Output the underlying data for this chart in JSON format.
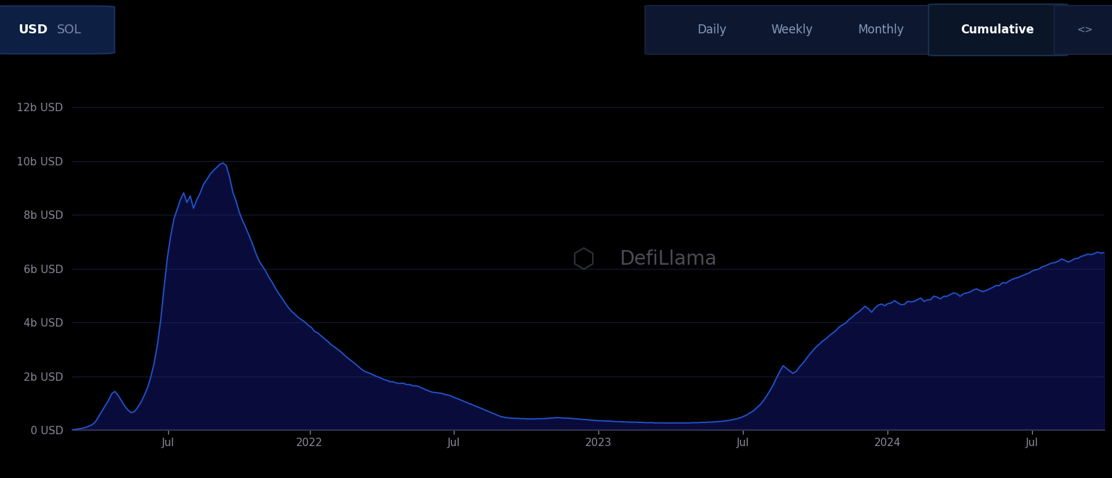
{
  "background_color": "#000000",
  "chart_bg": "#000000",
  "line_color": "#2255cc",
  "fill_color": "#1a3a8a",
  "ylabel_items": [
    "0 USD",
    "2b USD",
    "4b USD",
    "6b USD",
    "8b USD",
    "10b USD",
    "12b USD"
  ],
  "yticks": [
    0,
    2,
    4,
    6,
    8,
    10,
    12
  ],
  "ylim": [
    0,
    13.5
  ],
  "grid_color": "#1a1f3a",
  "tick_color": "#888899",
  "header_bg": "#060d1f",
  "ui_text_color": "#8899bb",
  "ui_active_color": "#ffffff",
  "watermark_text": "DefiLlama",
  "watermark_color": "#444455",
  "x_tick_labels": [
    "Jul",
    "2022",
    "Jul",
    "2023",
    "Jul",
    "2024",
    "Jul"
  ],
  "tvl_data": [
    0.02,
    0.03,
    0.05,
    0.07,
    0.1,
    0.15,
    0.2,
    0.3,
    0.5,
    0.7,
    0.9,
    1.1,
    1.35,
    1.45,
    1.3,
    1.1,
    0.9,
    0.75,
    0.65,
    0.7,
    0.85,
    1.05,
    1.3,
    1.6,
    2.0,
    2.5,
    3.2,
    4.1,
    5.3,
    6.4,
    7.2,
    7.8,
    8.2,
    8.6,
    8.8,
    8.5,
    8.7,
    8.3,
    8.6,
    8.8,
    9.1,
    9.3,
    9.5,
    9.65,
    9.8,
    9.9,
    9.95,
    9.8,
    9.4,
    8.9,
    8.5,
    8.1,
    7.8,
    7.5,
    7.2,
    6.9,
    6.6,
    6.3,
    6.1,
    5.9,
    5.7,
    5.5,
    5.3,
    5.1,
    4.9,
    4.7,
    4.55,
    4.4,
    4.3,
    4.2,
    4.1,
    4.0,
    3.9,
    3.8,
    3.7,
    3.6,
    3.5,
    3.4,
    3.3,
    3.2,
    3.1,
    3.0,
    2.9,
    2.8,
    2.7,
    2.6,
    2.5,
    2.4,
    2.3,
    2.2,
    2.15,
    2.1,
    2.05,
    2.0,
    1.95,
    1.9,
    1.85,
    1.8,
    1.8,
    1.75,
    1.75,
    1.75,
    1.7,
    1.7,
    1.65,
    1.65,
    1.6,
    1.55,
    1.5,
    1.45,
    1.42,
    1.4,
    1.38,
    1.35,
    1.32,
    1.3,
    1.25,
    1.2,
    1.15,
    1.1,
    1.05,
    1.0,
    0.95,
    0.9,
    0.85,
    0.8,
    0.75,
    0.7,
    0.65,
    0.6,
    0.55,
    0.5,
    0.48,
    0.46,
    0.45,
    0.44,
    0.44,
    0.43,
    0.43,
    0.42,
    0.42,
    0.42,
    0.43,
    0.43,
    0.43,
    0.44,
    0.45,
    0.46,
    0.47,
    0.46,
    0.45,
    0.45,
    0.44,
    0.43,
    0.42,
    0.41,
    0.4,
    0.39,
    0.38,
    0.37,
    0.36,
    0.35,
    0.35,
    0.34,
    0.34,
    0.33,
    0.32,
    0.32,
    0.31,
    0.31,
    0.3,
    0.3,
    0.3,
    0.29,
    0.29,
    0.28,
    0.28,
    0.28,
    0.27,
    0.27,
    0.27,
    0.27,
    0.27,
    0.27,
    0.27,
    0.27,
    0.27,
    0.27,
    0.27,
    0.28,
    0.28,
    0.28,
    0.29,
    0.29,
    0.3,
    0.3,
    0.31,
    0.32,
    0.33,
    0.34,
    0.36,
    0.38,
    0.4,
    0.43,
    0.47,
    0.52,
    0.58,
    0.65,
    0.73,
    0.83,
    0.95,
    1.1,
    1.28,
    1.48,
    1.7,
    1.95,
    2.2,
    2.4,
    2.3,
    2.2,
    2.1,
    2.2,
    2.35,
    2.5,
    2.65,
    2.8,
    2.95,
    3.1,
    3.2,
    3.3,
    3.4,
    3.5,
    3.6,
    3.7,
    3.8,
    3.9,
    4.0,
    4.1,
    4.2,
    4.3,
    4.4,
    4.5,
    4.6,
    4.5,
    4.4,
    4.55,
    4.65,
    4.7,
    4.6,
    4.7,
    4.75,
    4.8,
    4.7,
    4.65,
    4.7,
    4.8,
    4.75,
    4.8,
    4.85,
    4.9,
    4.8,
    4.85,
    4.9,
    5.0,
    4.95,
    4.9,
    4.95,
    5.0,
    5.05,
    5.1,
    5.05,
    5.0,
    5.05,
    5.1,
    5.15,
    5.2,
    5.25,
    5.2,
    5.15,
    5.2,
    5.25,
    5.3,
    5.35,
    5.4,
    5.45,
    5.5,
    5.55,
    5.6,
    5.65,
    5.7,
    5.75,
    5.8,
    5.85,
    5.9,
    5.95,
    6.0,
    6.05,
    6.1,
    6.15,
    6.2,
    6.25,
    6.3,
    6.35,
    6.3,
    6.25,
    6.3,
    6.35,
    6.4,
    6.45,
    6.5,
    6.55,
    6.5,
    6.55,
    6.6,
    6.55,
    6.6
  ]
}
